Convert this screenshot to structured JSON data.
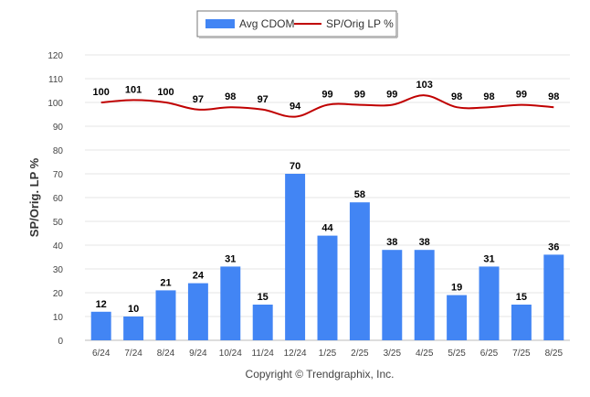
{
  "chart_data": {
    "type": "bar",
    "categories": [
      "6/24",
      "7/24",
      "8/24",
      "9/24",
      "10/24",
      "11/24",
      "12/24",
      "1/25",
      "2/25",
      "3/25",
      "4/25",
      "5/25",
      "6/25",
      "7/25",
      "8/25"
    ],
    "series": [
      {
        "name": "Avg CDOM",
        "type": "bar",
        "color": "#4285f4",
        "values": [
          12,
          10,
          21,
          24,
          31,
          15,
          70,
          44,
          58,
          38,
          38,
          19,
          31,
          15,
          36
        ]
      },
      {
        "name": "SP/Orig LP %",
        "type": "line",
        "color": "#c00000",
        "values": [
          100,
          101,
          100,
          97,
          98,
          97,
          94,
          99,
          99,
          99,
          103,
          98,
          98,
          99,
          98
        ]
      }
    ],
    "xlabel": "",
    "ylabel": "SP/Orig. LP %",
    "ylim": [
      0,
      120
    ],
    "yticks": [
      0,
      10,
      20,
      30,
      40,
      50,
      60,
      70,
      80,
      90,
      100,
      110,
      120
    ],
    "grid": true,
    "legend_position": "top-center",
    "data_labels": true
  },
  "footer": {
    "copyright": "Copyright © Trendgraphix, Inc."
  }
}
